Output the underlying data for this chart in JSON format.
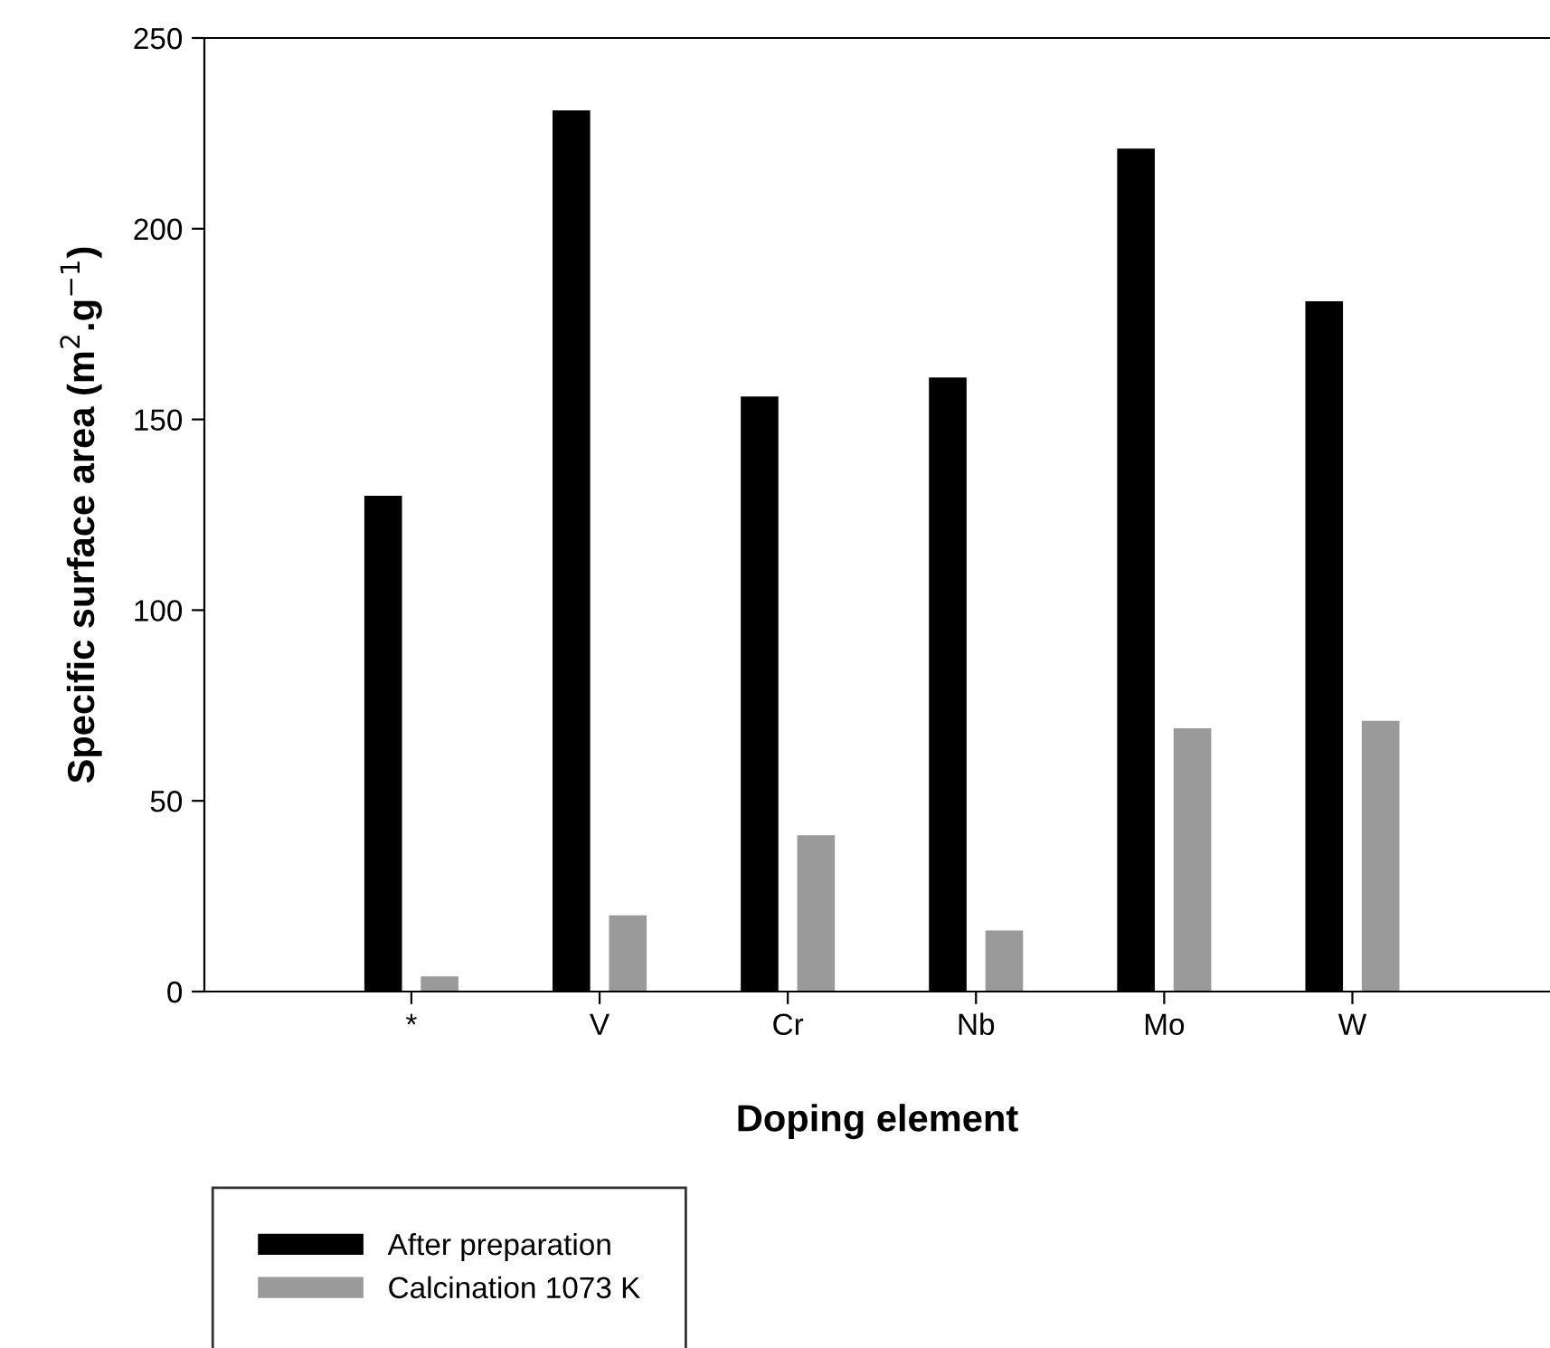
{
  "chart_data": {
    "type": "bar",
    "xlabel": "Doping element",
    "ylabel": "Specific surface area (m$^{2}$.g$^{−1}$)",
    "categories": [
      "*",
      "V",
      "Cr",
      "Nb",
      "Mo",
      "W"
    ],
    "series": [
      {
        "name": "After preparation",
        "color": "#000000",
        "values": [
          130,
          231,
          156,
          161,
          221,
          181
        ]
      },
      {
        "name": "Calcination 1073 K",
        "color": "#9a9a9a",
        "values": [
          4,
          20,
          41,
          16,
          69,
          71
        ]
      }
    ],
    "ylim": [
      0,
      250
    ],
    "yticks": [
      0,
      50,
      100,
      150,
      200,
      250
    ],
    "grid": false,
    "legend": "bottom left"
  }
}
